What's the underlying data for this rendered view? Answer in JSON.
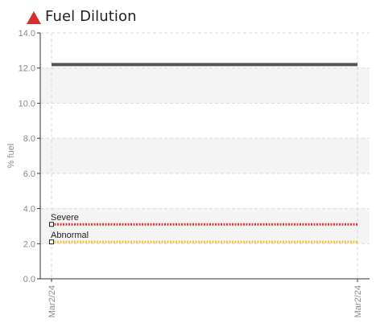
{
  "header": {
    "title": "Fuel Dilution",
    "status_icon": "warning-triangle-icon",
    "status_color": "#d32f2f"
  },
  "chart_data": {
    "type": "line",
    "title": "Fuel Dilution",
    "ylabel": "% fuel",
    "xlabel": "",
    "ylim": [
      0,
      14
    ],
    "y_ticks": [
      "0.0",
      "2.0",
      "4.0",
      "6.0",
      "8.0",
      "10.0",
      "12.0",
      "14.0"
    ],
    "x_ticks": [
      "Mar2/24",
      "Mar2/24"
    ],
    "grid": true,
    "series": [
      {
        "color": "#555555",
        "x": [
          "Mar2/24",
          "Mar2/24"
        ],
        "values": [
          12.2,
          12.2
        ]
      }
    ],
    "limits": [
      {
        "name": "Severe",
        "value": 3.1,
        "color": "#e53935"
      },
      {
        "name": "Abnormal",
        "value": 2.1,
        "color": "#fbc02d"
      }
    ]
  }
}
